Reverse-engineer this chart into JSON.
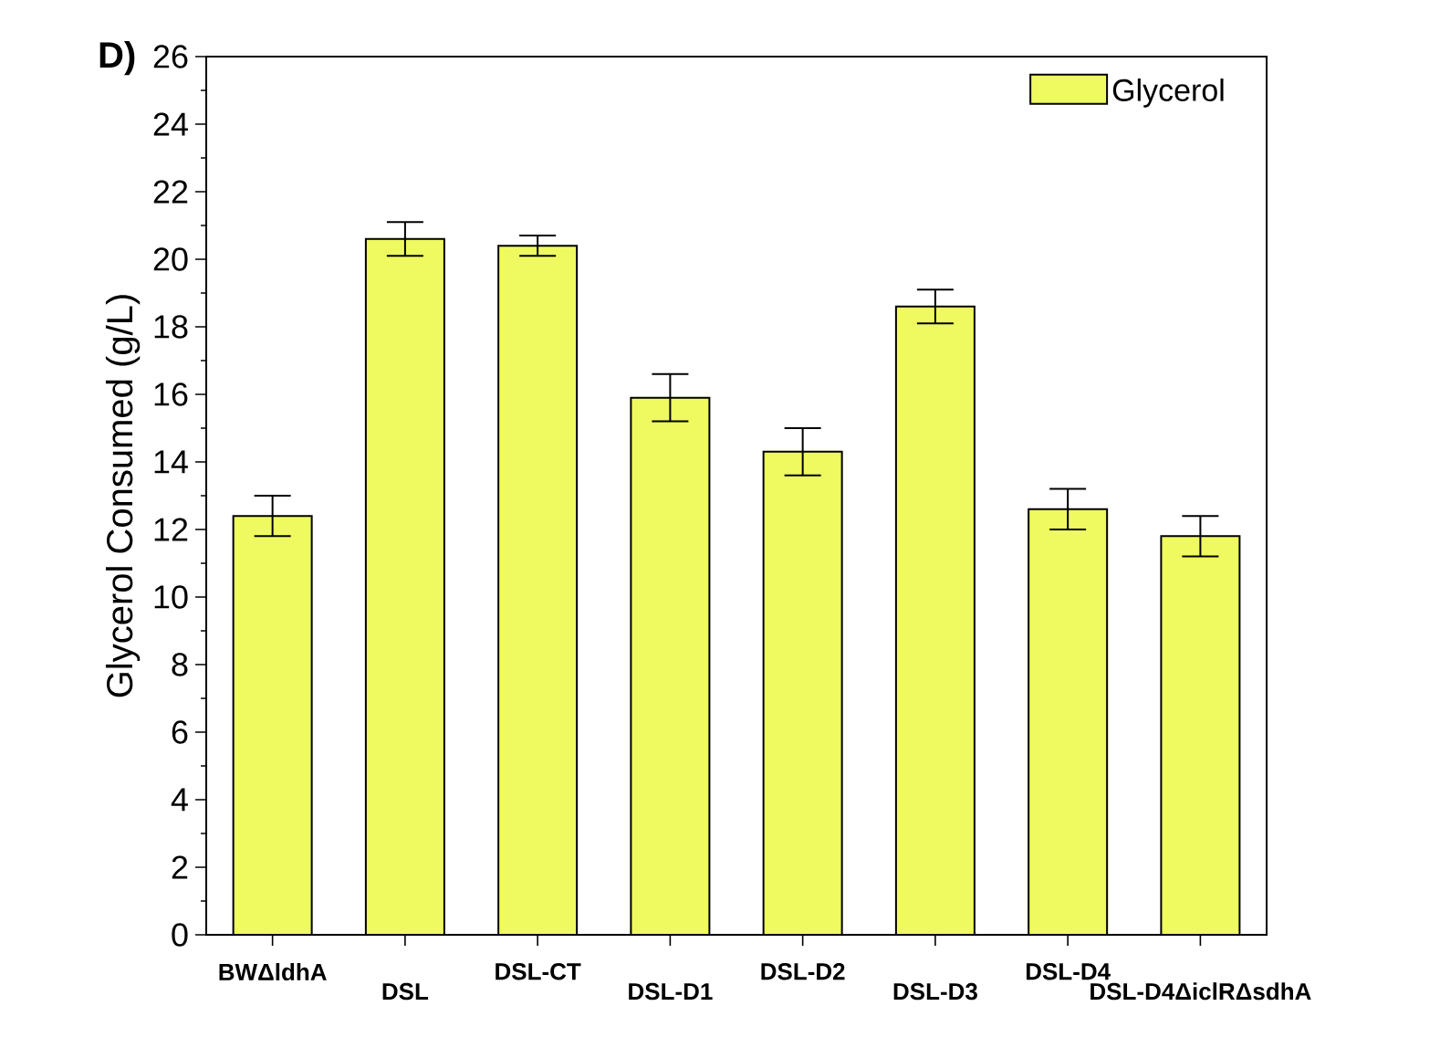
{
  "chart_data": {
    "type": "bar",
    "categories": [
      "BWΔldhA",
      "DSL",
      "DSL-CT",
      "DSL-D1",
      "DSL-D2",
      "DSL-D3",
      "DSL-D4",
      "DSL-D4ΔiclRΔsdhA"
    ],
    "series": [
      {
        "name": "Glycerol",
        "color": "#eefa5f",
        "values": [
          12.4,
          20.6,
          20.4,
          15.9,
          14.3,
          18.6,
          12.6,
          11.8
        ],
        "errors": [
          0.6,
          0.5,
          0.3,
          0.7,
          0.7,
          0.5,
          0.6,
          0.6
        ]
      }
    ],
    "ylabel": "Glycerol Consumed (g/L)",
    "ylim": [
      0,
      26
    ],
    "yticks": [
      0,
      2,
      4,
      6,
      8,
      10,
      12,
      14,
      16,
      18,
      20,
      22,
      24,
      26
    ],
    "legend": "top right",
    "annotations": [
      "D)"
    ]
  }
}
